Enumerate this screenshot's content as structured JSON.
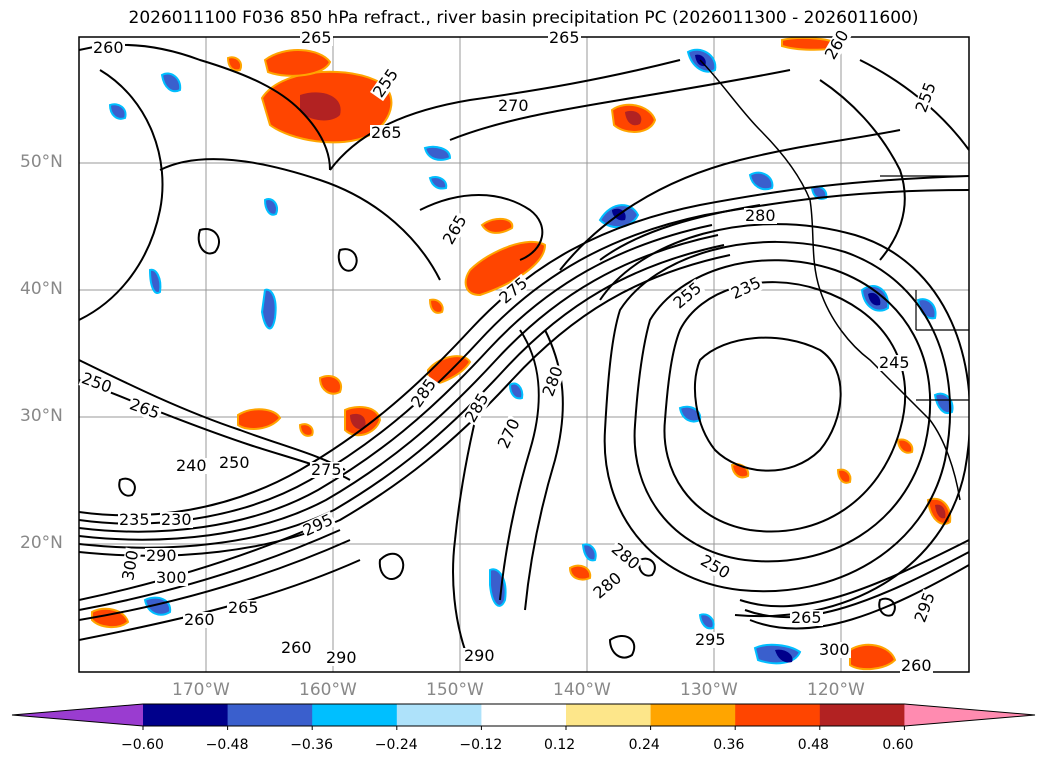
{
  "title": "2026011100 F036 850 hPa refract., river basin precipitation PC (2026011300 - 2026011600)",
  "lat_labels": [
    "50°N",
    "40°N",
    "30°N",
    "20°N"
  ],
  "lon_labels": [
    "170°W",
    "160°W",
    "150°W",
    "140°W",
    "130°W",
    "120°W"
  ],
  "contour_labels": [
    "260",
    "265",
    "255",
    "265",
    "270",
    "265",
    "260",
    "255",
    "280",
    "285",
    "265",
    "275",
    "235",
    "255",
    "250",
    "265",
    "240",
    "250",
    "275",
    "280",
    "285",
    "270",
    "230",
    "235",
    "290",
    "300",
    "300",
    "295",
    "265",
    "260",
    "260",
    "290",
    "290",
    "280",
    "250",
    "295",
    "265",
    "300",
    "295",
    "260",
    "280",
    "245"
  ],
  "colorbar": {
    "ticks": [
      "−0.60",
      "−0.48",
      "−0.36",
      "−0.24",
      "−0.12",
      "0.12",
      "0.24",
      "0.36",
      "0.48",
      "0.60"
    ],
    "colors": [
      "#9a3cd0",
      "#00008b",
      "#3a5fcd",
      "#00bfff",
      "#aee2fa",
      "#ffffff",
      "#fde68a",
      "#ffa500",
      "#ff4500",
      "#b22222",
      "#ff8bb0"
    ]
  }
}
